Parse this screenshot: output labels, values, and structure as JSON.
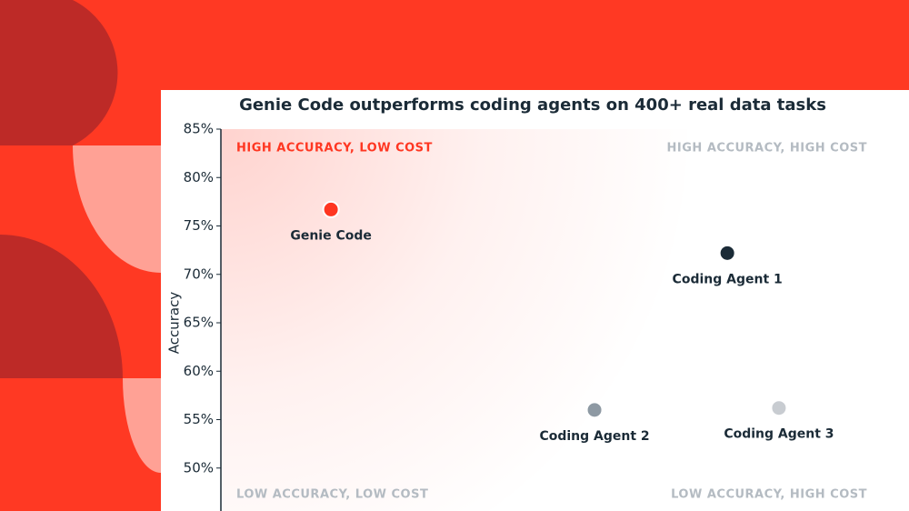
{
  "chart_data": {
    "type": "scatter",
    "title": "Genie Code outperforms coding agents on 400+ real data tasks",
    "ylabel": "Accuracy",
    "xlim": [
      0,
      100
    ],
    "ylim": [
      45,
      85
    ],
    "yticks": [
      {
        "value": 50,
        "label": "50%"
      },
      {
        "value": 55,
        "label": "55%"
      },
      {
        "value": 60,
        "label": "60%"
      },
      {
        "value": 65,
        "label": "65%"
      },
      {
        "value": 70,
        "label": "70%"
      },
      {
        "value": 75,
        "label": "75%"
      },
      {
        "value": 80,
        "label": "80%"
      },
      {
        "value": 85,
        "label": "85%"
      }
    ],
    "series": [
      {
        "name": "Genie Code",
        "color": "#ff3621",
        "x": [
          16
        ],
        "values": [
          76.7
        ]
      },
      {
        "name": "Coding Agent 1",
        "color": "#1b2b37",
        "x": [
          73.6
        ],
        "values": [
          72.2
        ]
      },
      {
        "name": "Coding Agent 2",
        "color": "#8e99a3",
        "x": [
          54.3
        ],
        "values": [
          56.0
        ]
      },
      {
        "name": "Coding Agent 3",
        "color": "#c8ccd1",
        "x": [
          81.1
        ],
        "values": [
          56.2
        ]
      }
    ],
    "annotations": [
      {
        "text": "HIGH ACCURACY, LOW COST",
        "corner": "top-left",
        "color": "#ff3621"
      },
      {
        "text": "HIGH ACCURACY, HIGH COST",
        "corner": "top-right",
        "color": "#b4bbc2"
      },
      {
        "text": "LOW ACCURACY, LOW COST",
        "corner": "bottom-left",
        "color": "#b4bbc2"
      },
      {
        "text": "LOW ACCURACY, HIGH COST",
        "corner": "bottom-right",
        "color": "#b4bbc2"
      }
    ]
  }
}
